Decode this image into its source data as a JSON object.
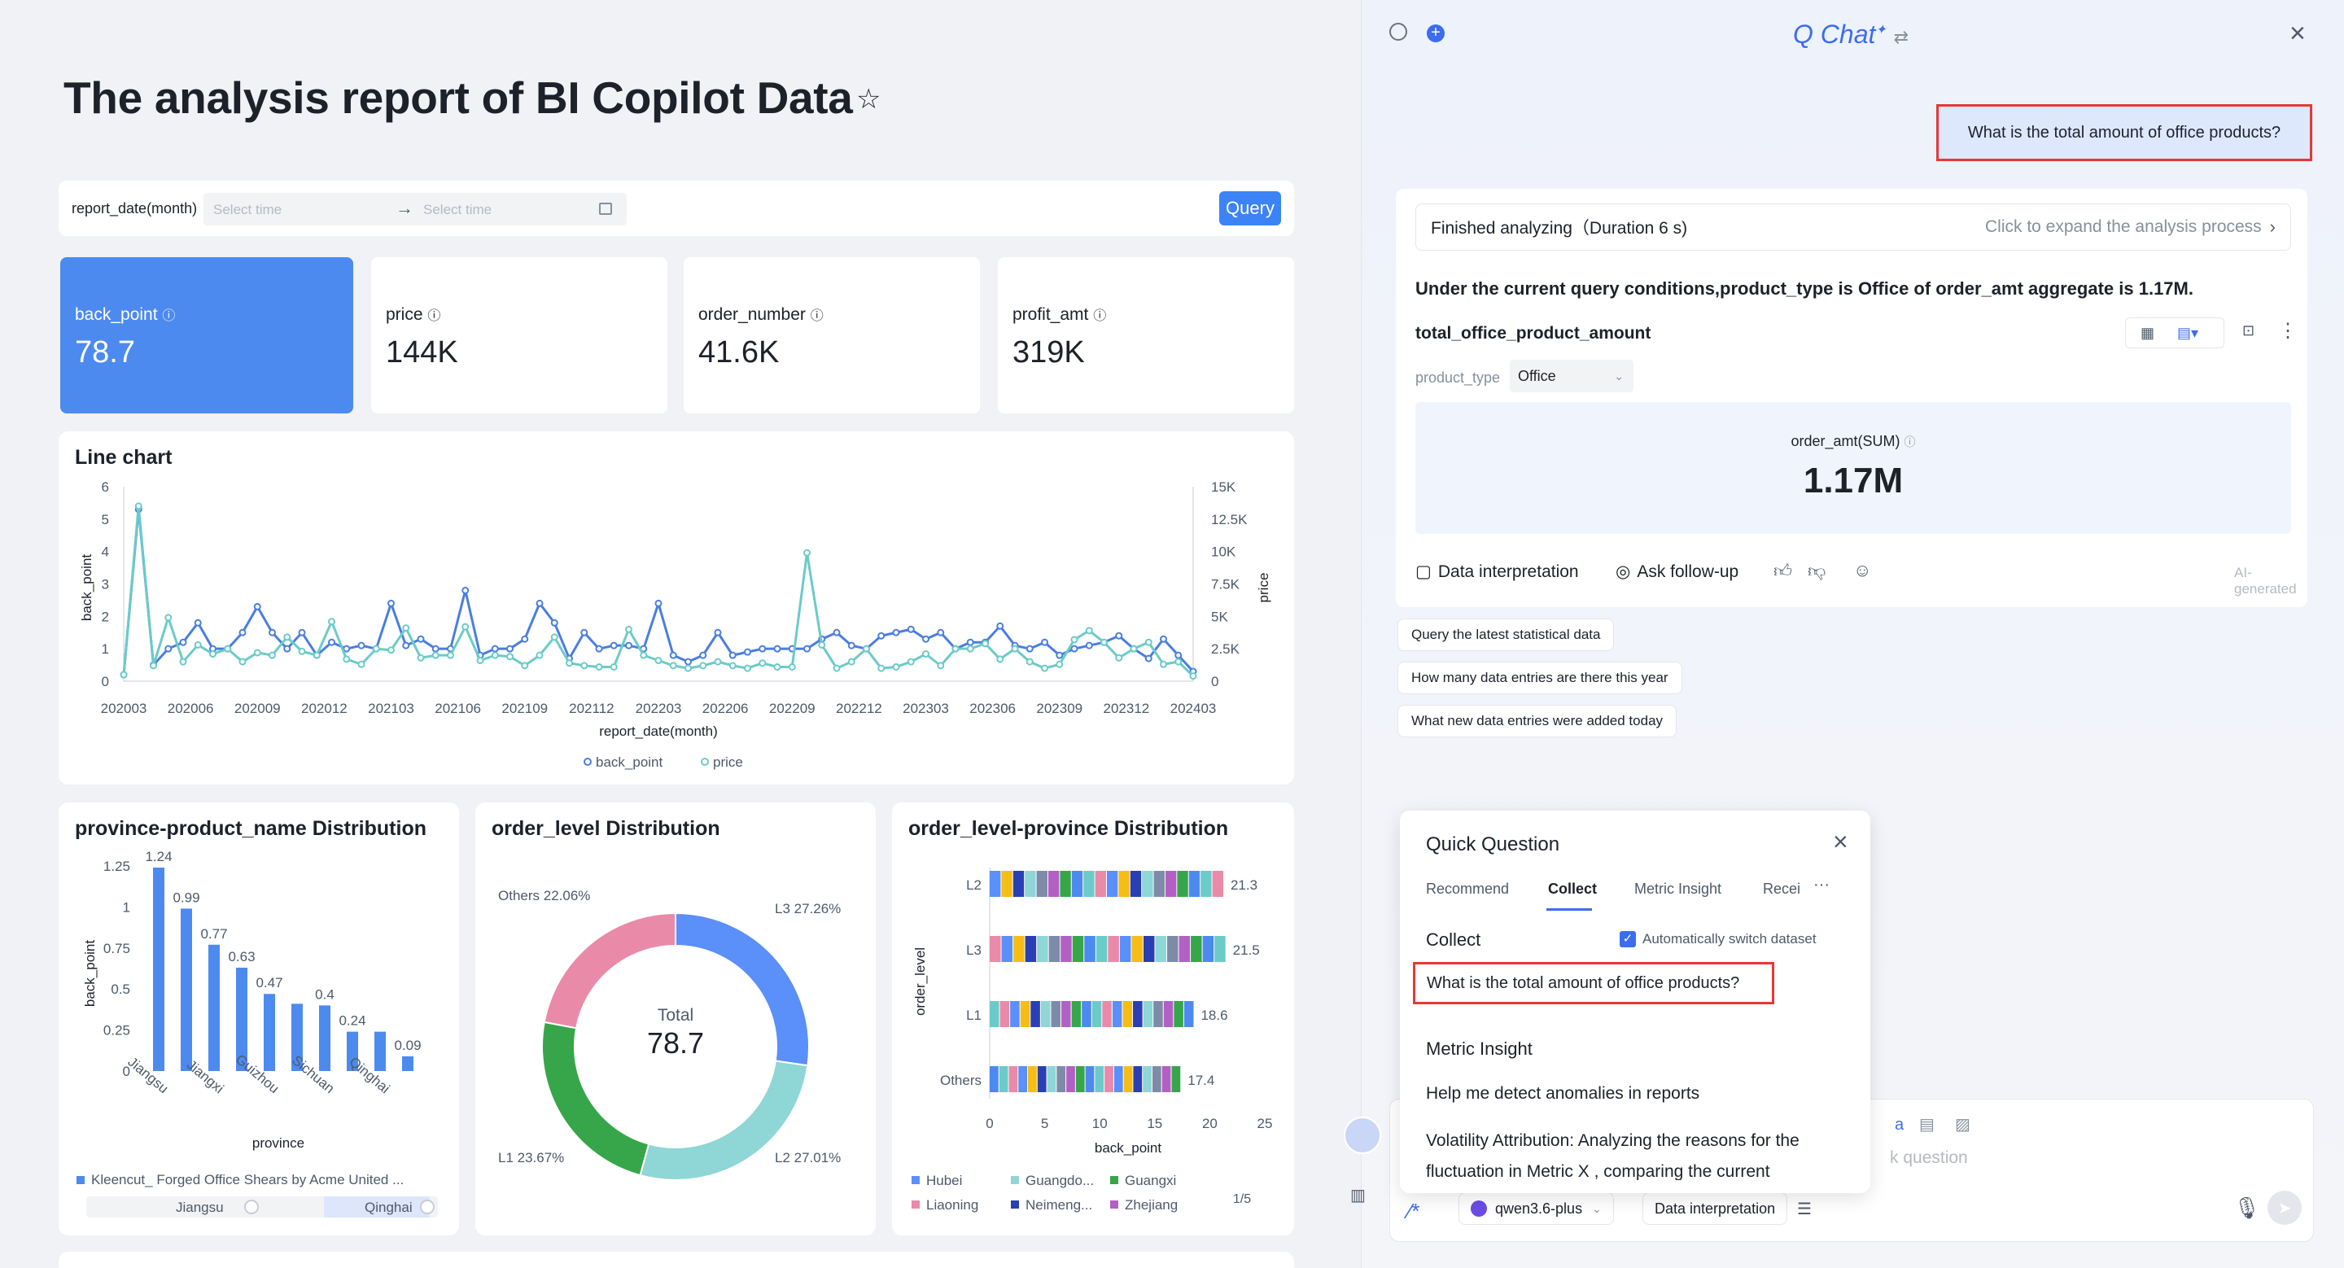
{
  "page": {
    "title": "The analysis report of BI Copilot Data"
  },
  "filter": {
    "label": "report_date(month)",
    "start_placeholder": "Select time",
    "end_placeholder": "Select time",
    "arrow": "→",
    "query_label": "Query"
  },
  "kpis": [
    {
      "label": "back_point",
      "value": "78.7"
    },
    {
      "label": "price",
      "value": "144K"
    },
    {
      "label": "order_number",
      "value": "41.6K"
    },
    {
      "label": "profit_amt",
      "value": "319K"
    }
  ],
  "line_panel": {
    "title": "Line chart"
  },
  "bar_panel": {
    "title": "province-product_name Distribution",
    "legend": "Kleencut_ Forged Office Shears by Acme United ...",
    "slider_left": "Jiangsu",
    "slider_right": "Qinghai"
  },
  "donut_panel": {
    "title": "order_level Distribution"
  },
  "hbar_panel": {
    "title": "order_level-province Distribution",
    "pager": "1/5"
  },
  "chart_data": [
    {
      "type": "line",
      "xlabel": "report_date(month)",
      "ylabel": "back_point",
      "y2label": "price",
      "ylim": [
        0,
        6
      ],
      "y2lim": [
        0,
        15000
      ],
      "yticks": [
        "0",
        "1",
        "2",
        "3",
        "4",
        "5",
        "6"
      ],
      "y2ticks": [
        "0",
        "2.5K",
        "5K",
        "7.5K",
        "10K",
        "12.5K",
        "15K"
      ],
      "xticks": [
        "202003",
        "202006",
        "202009",
        "202012",
        "202103",
        "202106",
        "202109",
        "202112",
        "202203",
        "202206",
        "202209",
        "202212",
        "202303",
        "202306",
        "202309",
        "202312",
        "202403"
      ],
      "legend": "bottom-center",
      "series": [
        {
          "name": "back_point",
          "color": "#4a7ee0",
          "axis": "left",
          "values": [
            0.2,
            5.3,
            0.5,
            1.0,
            1.2,
            1.8,
            1.0,
            1.0,
            1.5,
            2.3,
            1.5,
            1.0,
            1.5,
            0.8,
            1.2,
            1.0,
            1.1,
            1.0,
            2.4,
            1.1,
            1.3,
            1.0,
            1.0,
            2.8,
            0.8,
            1.0,
            1.0,
            1.3,
            2.4,
            1.8,
            0.7,
            1.5,
            1.0,
            1.1,
            1.1,
            1.0,
            2.4,
            0.8,
            0.6,
            0.8,
            1.5,
            0.8,
            0.9,
            1.0,
            1.0,
            1.0,
            1.0,
            1.3,
            1.5,
            1.1,
            1.0,
            1.4,
            1.5,
            1.6,
            1.3,
            1.5,
            1.0,
            1.2,
            1.2,
            1.7,
            1.1,
            1.0,
            1.2,
            0.8,
            1.0,
            1.1,
            1.2,
            1.4,
            1.0,
            0.7,
            1.3,
            0.8,
            0.3
          ]
        },
        {
          "name": "price",
          "color": "#6bcbc8",
          "axis": "right",
          "values": [
            500,
            13500,
            1200,
            4900,
            1500,
            2800,
            2100,
            2500,
            1500,
            2200,
            2000,
            3400,
            2300,
            2000,
            4600,
            1700,
            1300,
            2500,
            2400,
            4100,
            1800,
            2000,
            2000,
            4200,
            1600,
            2000,
            1900,
            1200,
            2000,
            3400,
            1400,
            1200,
            1100,
            1100,
            4000,
            2000,
            1600,
            1200,
            1000,
            1200,
            1500,
            1200,
            1000,
            1400,
            1100,
            1100,
            9900,
            2800,
            1000,
            1500,
            2500,
            1000,
            1100,
            1500,
            2100,
            1200,
            2500,
            2500,
            2900,
            1700,
            2500,
            1500,
            1000,
            1300,
            3200,
            3900,
            3000,
            1800,
            2500,
            3000,
            1300,
            1500,
            400
          ]
        }
      ]
    },
    {
      "type": "bar",
      "categories": [
        "Jiangsu",
        "Jiangxi",
        "Guizhou",
        "Sichuan",
        "Qinghai"
      ],
      "bar_values": [
        1.24,
        0.99,
        0.77,
        0.63,
        0.47,
        0.41,
        0.4,
        0.24,
        0.24,
        0.09
      ],
      "labels": [
        "1.24",
        "0.99",
        "0.77",
        "0.63",
        "0.47",
        "",
        "0.4",
        "0.24",
        "",
        "0.09"
      ],
      "xlabel": "province",
      "ylabel": "back_point",
      "yticks": [
        "0",
        "0.25",
        "0.5",
        "0.75",
        "1",
        "1.25"
      ],
      "ylim": [
        0,
        1.25
      ]
    },
    {
      "type": "pie",
      "center_label": "Total",
      "center_value": "78.7",
      "slices": [
        {
          "label": "L3 27.26%",
          "value": 27.26,
          "color": "#5b8ff9"
        },
        {
          "label": "L2 27.01%",
          "value": 27.01,
          "color": "#8fd6d6"
        },
        {
          "label": "L1 23.67%",
          "value": 23.67,
          "color": "#37a64a"
        },
        {
          "label": "Others 22.06%",
          "value": 22.06,
          "color": "#e98aa9"
        }
      ]
    },
    {
      "type": "bar",
      "orientation": "horizontal",
      "categories": [
        "L2",
        "L3",
        "L1",
        "Others"
      ],
      "totals": [
        21.3,
        21.5,
        18.6,
        17.4
      ],
      "total_labels": [
        "21.3",
        "21.5",
        "18.6",
        "17.4"
      ],
      "xlabel": "back_point",
      "ylabel": "order_level",
      "xticks": [
        "0",
        "5",
        "10",
        "15",
        "20",
        "25"
      ],
      "xlim": [
        0,
        25
      ],
      "legend_items": [
        {
          "name": "Hubei",
          "color": "#5b8ff9"
        },
        {
          "name": "Guangdo...",
          "color": "#8fd6d6"
        },
        {
          "name": "Guangxi",
          "color": "#37a64a"
        },
        {
          "name": "Liaoning",
          "color": "#e98aa9"
        },
        {
          "name": "Neimeng...",
          "color": "#2a3fb3"
        },
        {
          "name": "Zhejiang",
          "color": "#b360c4"
        }
      ]
    }
  ],
  "chat": {
    "title": "Q Chat",
    "user_message": "What is the total amount of office products?",
    "status": "Finished analyzing（Duration 6 s)",
    "expand_label": "Click to expand the analysis process",
    "answer": "Under the current query conditions,product_type is Office of order_amt aggregate is 1.17M.",
    "result_title": "total_office_product_amount",
    "filter_label": "product_type",
    "filter_value": "Office",
    "metric_label": "order_amt(SUM)",
    "metric_value": "1.17M",
    "data_interp": "Data interpretation",
    "ask_followup": "Ask follow-up",
    "ai_generated": "AI-generated",
    "suggestions": [
      "Query the latest statistical data",
      "How many data entries are there this year",
      "What new data entries were added today"
    ],
    "input_placeholder": "k question",
    "input_link": "a",
    "model": "qwen3.6-plus",
    "mode": "Data interpretation"
  },
  "quick_question": {
    "title": "Quick Question",
    "tabs": [
      "Recommend",
      "Collect",
      "Metric Insight",
      "Recei"
    ],
    "more": "···",
    "collect_header": "Collect",
    "auto_switch": "Automatically switch dataset",
    "collect_item": "What is the total amount of office products?",
    "metric_header": "Metric Insight",
    "metric_items": [
      "Help me detect anomalies in reports",
      "Volatility Attribution: Analyzing the reasons for the",
      "fluctuation in  Metric X , comparing the  current"
    ]
  }
}
